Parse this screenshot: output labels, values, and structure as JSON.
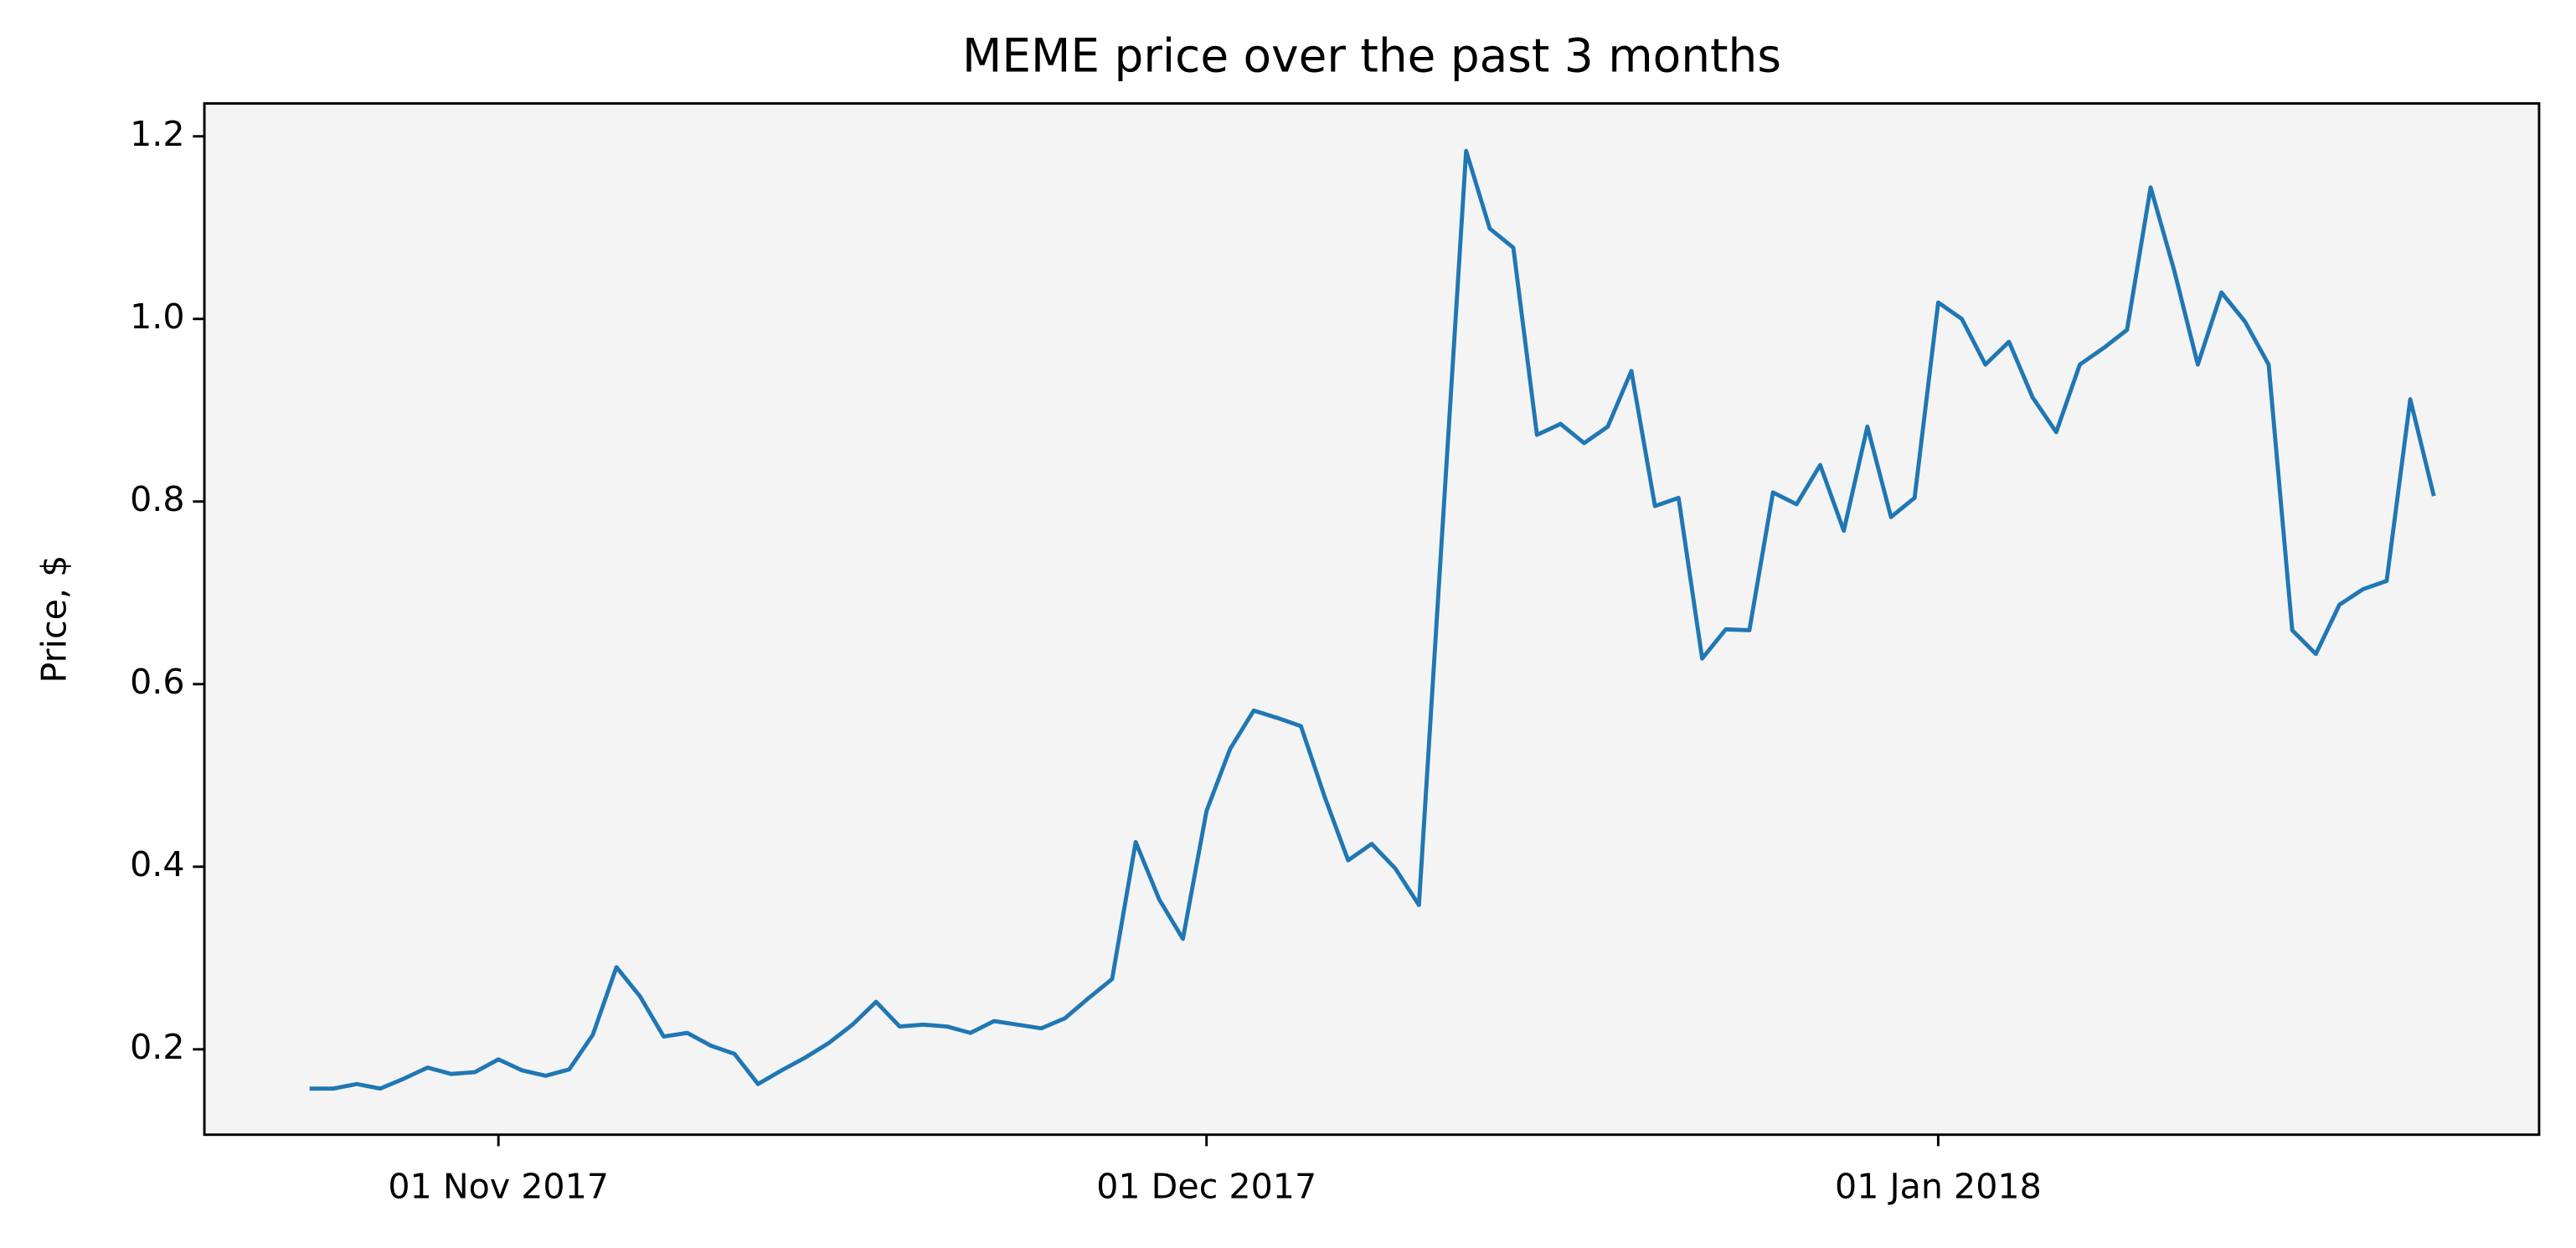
{
  "chart_data": {
    "type": "line",
    "title": "MEME price over the past 3 months",
    "y_label": "Price, $",
    "x": [
      "2017-10-24",
      "2017-10-25",
      "2017-10-26",
      "2017-10-27",
      "2017-10-28",
      "2017-10-29",
      "2017-10-30",
      "2017-10-31",
      "2017-11-01",
      "2017-11-02",
      "2017-11-03",
      "2017-11-04",
      "2017-11-05",
      "2017-11-06",
      "2017-11-07",
      "2017-11-08",
      "2017-11-09",
      "2017-11-10",
      "2017-11-11",
      "2017-11-12",
      "2017-11-13",
      "2017-11-14",
      "2017-11-15",
      "2017-11-16",
      "2017-11-17",
      "2017-11-18",
      "2017-11-19",
      "2017-11-20",
      "2017-11-21",
      "2017-11-22",
      "2017-11-23",
      "2017-11-24",
      "2017-11-25",
      "2017-11-26",
      "2017-11-27",
      "2017-11-28",
      "2017-11-29",
      "2017-11-30",
      "2017-12-01",
      "2017-12-02",
      "2017-12-03",
      "2017-12-04",
      "2017-12-05",
      "2017-12-06",
      "2017-12-07",
      "2017-12-08",
      "2017-12-09",
      "2017-12-10",
      "2017-12-11",
      "2017-12-12",
      "2017-12-13",
      "2017-12-14",
      "2017-12-15",
      "2017-12-16",
      "2017-12-17",
      "2017-12-18",
      "2017-12-19",
      "2017-12-20",
      "2017-12-21",
      "2017-12-22",
      "2017-12-23",
      "2017-12-24",
      "2017-12-25",
      "2017-12-26",
      "2017-12-27",
      "2017-12-28",
      "2017-12-29",
      "2017-12-30",
      "2017-12-31",
      "2018-01-01",
      "2018-01-02",
      "2018-01-03",
      "2018-01-04",
      "2018-01-05",
      "2018-01-06",
      "2018-01-07",
      "2018-01-08",
      "2018-01-09",
      "2018-01-10",
      "2018-01-11",
      "2018-01-12",
      "2018-01-13",
      "2018-01-14",
      "2018-01-15",
      "2018-01-16",
      "2018-01-17",
      "2018-01-18",
      "2018-01-19",
      "2018-01-20",
      "2018-01-21",
      "2018-01-22"
    ],
    "series": [
      {
        "name": "MEME",
        "color": "#1f77b4",
        "values": [
          0.157,
          0.157,
          0.162,
          0.157,
          0.168,
          0.18,
          0.173,
          0.175,
          0.189,
          0.177,
          0.171,
          0.178,
          0.216,
          0.29,
          0.258,
          0.214,
          0.218,
          0.204,
          0.195,
          0.162,
          0.177,
          0.191,
          0.207,
          0.227,
          0.252,
          0.225,
          0.227,
          0.225,
          0.218,
          0.231,
          0.227,
          0.223,
          0.234,
          0.256,
          0.277,
          0.427,
          0.364,
          0.321,
          0.461,
          0.529,
          0.571,
          0.563,
          0.554,
          0.477,
          0.407,
          0.425,
          0.398,
          0.358,
          0.772,
          1.184,
          1.099,
          1.078,
          0.873,
          0.885,
          0.864,
          0.882,
          0.943,
          0.795,
          0.804,
          0.628,
          0.66,
          0.659,
          0.81,
          0.797,
          0.84,
          0.768,
          0.882,
          0.783,
          0.804,
          1.018,
          1.0,
          0.95,
          0.975,
          0.914,
          0.876,
          0.95,
          0.968,
          0.988,
          1.144,
          1.053,
          0.95,
          1.029,
          0.997,
          0.95,
          0.659,
          0.633,
          0.687,
          0.704,
          0.713,
          0.912,
          0.806
        ]
      }
    ],
    "xlim": [
      "2017-10-19T13:00Z",
      "2018-01-26T11:00Z"
    ],
    "xticks": [
      {
        "value": "2017-11-01",
        "label": "01 Nov 2017"
      },
      {
        "value": "2017-12-01",
        "label": "01 Dec 2017"
      },
      {
        "value": "2018-01-01",
        "label": "01 Jan 2018"
      }
    ],
    "ylim": [
      0.1065,
      1.236
    ],
    "yticks": [
      0.2,
      0.4,
      0.6,
      0.8,
      {
        "value": 1,
        "label": "1.0"
      },
      1.2
    ],
    "grid": false,
    "background": "#f4f4f4"
  }
}
